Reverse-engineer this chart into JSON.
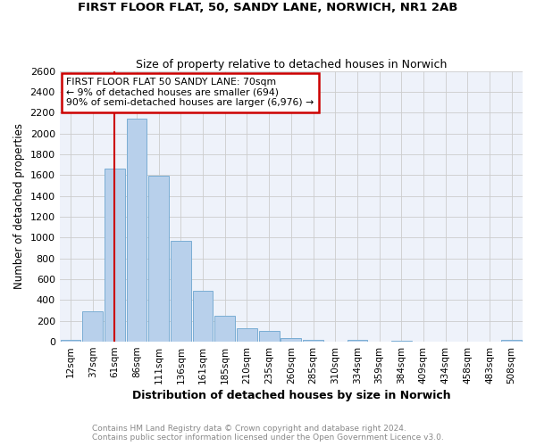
{
  "title": "FIRST FLOOR FLAT, 50, SANDY LANE, NORWICH, NR1 2AB",
  "subtitle": "Size of property relative to detached houses in Norwich",
  "xlabel": "Distribution of detached houses by size in Norwich",
  "ylabel": "Number of detached properties",
  "categories": [
    "12sqm",
    "37sqm",
    "61sqm",
    "86sqm",
    "111sqm",
    "136sqm",
    "161sqm",
    "185sqm",
    "210sqm",
    "235sqm",
    "260sqm",
    "285sqm",
    "310sqm",
    "334sqm",
    "359sqm",
    "384sqm",
    "409sqm",
    "434sqm",
    "458sqm",
    "483sqm",
    "508sqm"
  ],
  "values": [
    15,
    295,
    1660,
    2140,
    1595,
    970,
    490,
    250,
    125,
    100,
    35,
    18,
    0,
    15,
    0,
    5,
    0,
    0,
    0,
    0,
    15
  ],
  "bar_color": "#b8d0eb",
  "bar_edge_color": "#7aadd4",
  "property_line_label": "FIRST FLOOR FLAT 50 SANDY LANE: 70sqm",
  "annotation_line1": "← 9% of detached houses are smaller (694)",
  "annotation_line2": "90% of semi-detached houses are larger (6,976) →",
  "annotation_box_color": "#ffffff",
  "annotation_box_edge": "#cc0000",
  "vline_color": "#cc0000",
  "ylim": [
    0,
    2600
  ],
  "yticks": [
    0,
    200,
    400,
    600,
    800,
    1000,
    1200,
    1400,
    1600,
    1800,
    2000,
    2200,
    2400,
    2600
  ],
  "grid_color": "#cccccc",
  "bg_color": "#eef2fa",
  "footer1": "Contains HM Land Registry data © Crown copyright and database right 2024.",
  "footer2": "Contains public sector information licensed under the Open Government Licence v3.0."
}
